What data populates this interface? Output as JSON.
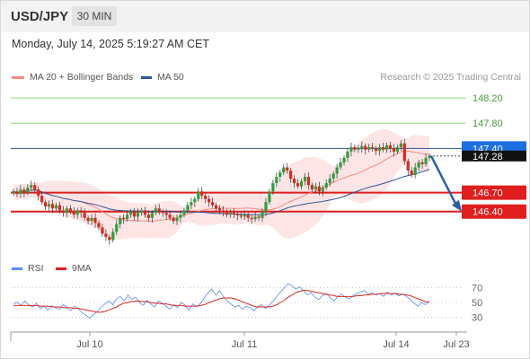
{
  "header": {
    "pair": "USD/JPY",
    "timeframe": "30 MIN"
  },
  "date_text": "Monday, July 14, 2025 5:19:27 AM CET",
  "legend_main": [
    {
      "label": "MA 20 + Bollinger Bands",
      "color": "#f28b82"
    },
    {
      "label": "MA 50",
      "color": "#2b5797"
    }
  ],
  "legend_rsi": [
    {
      "label": "RSI",
      "color": "#5b8def"
    },
    {
      "label": "9MA",
      "color": "#e01e1e"
    }
  ],
  "copyright": "Research © 2025 Trading Central",
  "colors": {
    "up": "#2e9e3f",
    "down": "#d9281e",
    "resistance": "#8fd37a",
    "support": "#e01e1e",
    "pivot": "#2b5797",
    "current": "#111111",
    "band": "#fddcdc"
  },
  "chart_data": [
    {
      "type": "candlestick",
      "y_range": [
        145.7,
        148.4
      ],
      "x_ticks": [
        "Jul 10",
        "Jul 11",
        "Jul 14",
        "Jul 23"
      ],
      "levels": [
        {
          "value": 148.2,
          "label": "148.20",
          "kind": "resistance"
        },
        {
          "value": 147.8,
          "label": "147.80",
          "kind": "resistance"
        },
        {
          "value": 147.4,
          "label": "147.40",
          "kind": "pivot"
        },
        {
          "value": 146.7,
          "label": "146.70",
          "kind": "support"
        },
        {
          "value": 146.4,
          "label": "146.40",
          "kind": "support"
        }
      ],
      "current_price": {
        "value": 147.28,
        "label": "147.28"
      },
      "forecast_arrow": {
        "from": 147.28,
        "to": 146.4,
        "direction": "down"
      },
      "closes": [
        146.72,
        146.68,
        146.75,
        146.7,
        146.78,
        146.82,
        146.75,
        146.65,
        146.55,
        146.48,
        146.52,
        146.45,
        146.5,
        146.42,
        146.38,
        146.45,
        146.4,
        146.35,
        146.42,
        146.38,
        146.3,
        146.25,
        146.3,
        146.22,
        146.15,
        146.05,
        146.0,
        145.95,
        146.08,
        146.2,
        146.3,
        146.28,
        146.35,
        146.4,
        146.32,
        146.38,
        146.42,
        146.35,
        146.3,
        146.38,
        146.45,
        146.4,
        146.38,
        146.35,
        146.3,
        146.25,
        146.3,
        146.35,
        146.42,
        146.5,
        146.55,
        146.6,
        146.72,
        146.65,
        146.6,
        146.55,
        146.5,
        146.45,
        146.42,
        146.4,
        146.35,
        146.38,
        146.36,
        146.34,
        146.32,
        146.35,
        146.3,
        146.28,
        146.32,
        146.3,
        146.4,
        146.55,
        146.72,
        146.85,
        146.95,
        147.02,
        147.1,
        147.05,
        146.92,
        146.85,
        146.8,
        146.88,
        146.95,
        146.82,
        146.75,
        146.8,
        146.72,
        146.78,
        146.85,
        146.92,
        147.0,
        147.1,
        147.18,
        147.25,
        147.35,
        147.42,
        147.38,
        147.4,
        147.44,
        147.38,
        147.42,
        147.4,
        147.36,
        147.42,
        147.38,
        147.45,
        147.4,
        147.35,
        147.42,
        147.48,
        147.2,
        147.05,
        146.98,
        147.1,
        147.18,
        147.15,
        147.25,
        147.28
      ],
      "rsi": {
        "y_ticks": [
          70,
          50,
          30
        ],
        "rsi_values": [
          48,
          50,
          46,
          52,
          47,
          44,
          49,
          42,
          45,
          40,
          46,
          43,
          41,
          47,
          44,
          39,
          45,
          42,
          36,
          33,
          29,
          34,
          38,
          44,
          48,
          52,
          47,
          55,
          58,
          52,
          60,
          54,
          57,
          50,
          46,
          53,
          48,
          44,
          52,
          49,
          45,
          41,
          47,
          43,
          50,
          46,
          40,
          48,
          44,
          49,
          56,
          63,
          68,
          60,
          66,
          58,
          52,
          48,
          44,
          46,
          41,
          45,
          43,
          39,
          44,
          47,
          42,
          46,
          52,
          58,
          64,
          70,
          75,
          72,
          68,
          71,
          66,
          60,
          63,
          57,
          54,
          59,
          62,
          56,
          52,
          58,
          61,
          57,
          55,
          59,
          62,
          64,
          66,
          61,
          63,
          60,
          62,
          58,
          64,
          60,
          62,
          59,
          61,
          58,
          54,
          49,
          45,
          50,
          47,
          53
        ],
        "ma_values": [
          46,
          46,
          46,
          46,
          46,
          46,
          46,
          45,
          45,
          45,
          44,
          44,
          44,
          43,
          43,
          43,
          42,
          42,
          41,
          40,
          39,
          38,
          37,
          37,
          38,
          40,
          42,
          44,
          47,
          49,
          50,
          51,
          52,
          52,
          51,
          51,
          50,
          49,
          49,
          48,
          48,
          47,
          46,
          46,
          46,
          45,
          45,
          45,
          45,
          46,
          47,
          49,
          51,
          53,
          55,
          56,
          56,
          56,
          55,
          53,
          51,
          49,
          47,
          45,
          44,
          44,
          44,
          44,
          45,
          47,
          50,
          53,
          57,
          60,
          63,
          65,
          66,
          66,
          65,
          64,
          63,
          62,
          61,
          60,
          59,
          58,
          58,
          58,
          58,
          58,
          59,
          59,
          60,
          60,
          61,
          61,
          62,
          62,
          62,
          62,
          62,
          61,
          61,
          60,
          59,
          57,
          55,
          53,
          51,
          50
        ]
      }
    }
  ]
}
